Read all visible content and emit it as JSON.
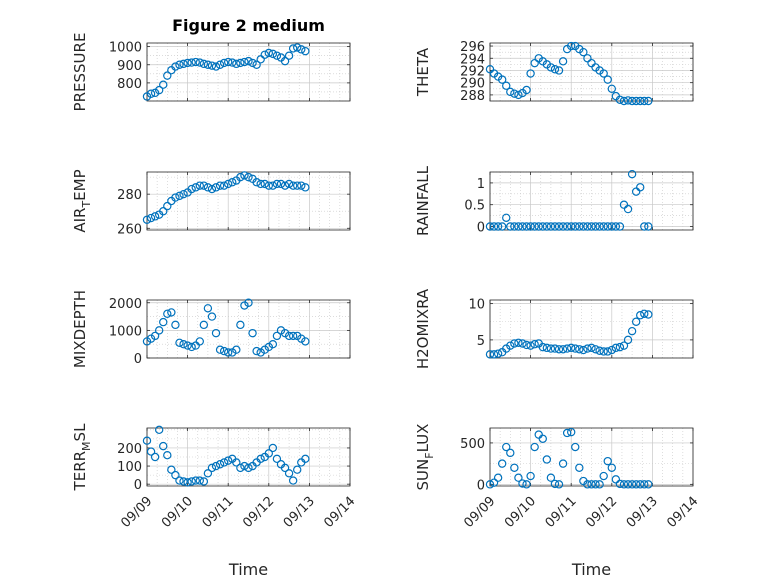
{
  "figure_title": "Figure 2 medium",
  "colors": {
    "marker": "#0072BD",
    "axis": "#262626",
    "grid": "#c8c8c8"
  },
  "chart_data": [
    {
      "id": "pressure",
      "type": "scatter",
      "title": "Figure 2 medium",
      "ylabel": "PRESSURE",
      "ylabel_sub": "",
      "ylabel_suffix": "",
      "xlabel": "",
      "ylim": [
        700,
        1020
      ],
      "yticks": [
        800,
        900,
        1000
      ],
      "xlim": [
        0,
        5
      ],
      "xticks": [
        0,
        1,
        2,
        3,
        4,
        5
      ],
      "xticklabels": [
        "09/09",
        "09/10",
        "09/11",
        "09/12",
        "09/13",
        "09/14"
      ],
      "show_xticklabels": false,
      "x": [
        0.0,
        0.1,
        0.2,
        0.3,
        0.4,
        0.5,
        0.6,
        0.7,
        0.8,
        0.9,
        1.0,
        1.1,
        1.2,
        1.3,
        1.4,
        1.5,
        1.6,
        1.7,
        1.8,
        1.9,
        2.0,
        2.1,
        2.2,
        2.3,
        2.4,
        2.5,
        2.6,
        2.7,
        2.8,
        2.9,
        3.0,
        3.1,
        3.2,
        3.3,
        3.4,
        3.5,
        3.6,
        3.7,
        3.8,
        3.9
      ],
      "y": [
        725,
        740,
        745,
        760,
        790,
        840,
        870,
        890,
        900,
        905,
        910,
        912,
        915,
        912,
        905,
        900,
        895,
        890,
        900,
        910,
        915,
        912,
        905,
        910,
        915,
        920,
        910,
        900,
        930,
        955,
        965,
        960,
        950,
        940,
        920,
        950,
        990,
        995,
        985,
        975
      ]
    },
    {
      "id": "theta",
      "type": "scatter",
      "title": "",
      "ylabel": "THETA",
      "ylabel_sub": "",
      "ylabel_suffix": "",
      "xlabel": "",
      "ylim": [
        287,
        296.5
      ],
      "yticks": [
        288,
        290,
        292,
        294,
        296
      ],
      "xlim": [
        0,
        5
      ],
      "xticks": [
        0,
        1,
        2,
        3,
        4,
        5
      ],
      "xticklabels": [
        "09/09",
        "09/10",
        "09/11",
        "09/12",
        "09/13",
        "09/14"
      ],
      "show_xticklabels": false,
      "x": [
        0.0,
        0.1,
        0.2,
        0.3,
        0.4,
        0.5,
        0.6,
        0.7,
        0.8,
        0.9,
        1.0,
        1.1,
        1.2,
        1.3,
        1.4,
        1.5,
        1.6,
        1.7,
        1.8,
        1.9,
        2.0,
        2.1,
        2.2,
        2.3,
        2.4,
        2.5,
        2.6,
        2.7,
        2.8,
        2.9,
        3.0,
        3.1,
        3.2,
        3.3,
        3.4,
        3.5,
        3.6,
        3.7,
        3.8,
        3.9
      ],
      "y": [
        292.2,
        291.5,
        291.0,
        290.5,
        289.5,
        288.5,
        288.2,
        288.0,
        288.3,
        288.8,
        291.5,
        293.2,
        294.0,
        293.5,
        293.0,
        292.5,
        292.2,
        292.0,
        293.5,
        295.5,
        296.0,
        296.0,
        295.5,
        295.0,
        294.0,
        293.2,
        292.5,
        292.0,
        291.5,
        290.5,
        289.0,
        287.8,
        287.2,
        287.0,
        287.1,
        287.0,
        287.0,
        287.0,
        287.0,
        287.0
      ]
    },
    {
      "id": "air_temp",
      "type": "scatter",
      "title": "",
      "ylabel": "AIR",
      "ylabel_sub": "T",
      "ylabel_suffix": "EMP",
      "xlabel": "",
      "ylim": [
        259,
        293
      ],
      "yticks": [
        260,
        280
      ],
      "xlim": [
        0,
        5
      ],
      "xticks": [
        0,
        1,
        2,
        3,
        4,
        5
      ],
      "xticklabels": [
        "09/09",
        "09/10",
        "09/11",
        "09/12",
        "09/13",
        "09/14"
      ],
      "show_xticklabels": false,
      "x": [
        0.0,
        0.1,
        0.2,
        0.3,
        0.4,
        0.5,
        0.6,
        0.7,
        0.8,
        0.9,
        1.0,
        1.1,
        1.2,
        1.3,
        1.4,
        1.5,
        1.6,
        1.7,
        1.8,
        1.9,
        2.0,
        2.1,
        2.2,
        2.3,
        2.4,
        2.5,
        2.6,
        2.7,
        2.8,
        2.9,
        3.0,
        3.1,
        3.2,
        3.3,
        3.4,
        3.5,
        3.6,
        3.7,
        3.8,
        3.9
      ],
      "y": [
        265,
        266,
        267,
        268,
        270,
        273,
        276,
        278,
        279,
        280,
        281,
        283,
        284,
        285,
        285,
        284,
        283,
        284,
        285,
        285,
        286,
        287,
        288,
        290,
        291,
        290,
        289,
        287,
        286,
        286,
        285,
        285,
        286,
        286,
        285,
        286,
        285,
        285,
        285,
        284
      ]
    },
    {
      "id": "rainfall",
      "type": "scatter",
      "title": "",
      "ylabel": "RAINFALL",
      "ylabel_sub": "",
      "ylabel_suffix": "",
      "xlabel": "",
      "ylim": [
        -0.08,
        1.25
      ],
      "yticks": [
        0,
        0.5,
        1
      ],
      "xlim": [
        0,
        5
      ],
      "xticks": [
        0,
        1,
        2,
        3,
        4,
        5
      ],
      "xticklabels": [
        "09/09",
        "09/10",
        "09/11",
        "09/12",
        "09/13",
        "09/14"
      ],
      "show_xticklabels": false,
      "x": [
        0.0,
        0.1,
        0.2,
        0.3,
        0.4,
        0.5,
        0.6,
        0.7,
        0.8,
        0.9,
        1.0,
        1.1,
        1.2,
        1.3,
        1.4,
        1.5,
        1.6,
        1.7,
        1.8,
        1.9,
        2.0,
        2.1,
        2.2,
        2.3,
        2.4,
        2.5,
        2.6,
        2.7,
        2.8,
        2.9,
        3.0,
        3.1,
        3.2,
        3.3,
        3.4,
        3.5,
        3.6,
        3.7,
        3.8,
        3.9
      ],
      "y": [
        0,
        0,
        0,
        0,
        0.2,
        0,
        0,
        0,
        0,
        0,
        0,
        0,
        0,
        0,
        0,
        0,
        0,
        0,
        0,
        0,
        0,
        0,
        0,
        0,
        0,
        0,
        0,
        0,
        0,
        0,
        0,
        0,
        0,
        0.5,
        0.4,
        1.2,
        0.8,
        0.9,
        0,
        0
      ]
    },
    {
      "id": "mixdepth",
      "type": "scatter",
      "title": "",
      "ylabel": "MIXDEPTH",
      "ylabel_sub": "",
      "ylabel_suffix": "",
      "xlabel": "",
      "ylim": [
        0,
        2100
      ],
      "yticks": [
        0,
        1000,
        2000
      ],
      "xlim": [
        0,
        5
      ],
      "xticks": [
        0,
        1,
        2,
        3,
        4,
        5
      ],
      "xticklabels": [
        "09/09",
        "09/10",
        "09/11",
        "09/12",
        "09/13",
        "09/14"
      ],
      "show_xticklabels": false,
      "x": [
        0.0,
        0.1,
        0.2,
        0.3,
        0.4,
        0.5,
        0.6,
        0.7,
        0.8,
        0.9,
        1.0,
        1.1,
        1.2,
        1.3,
        1.4,
        1.5,
        1.6,
        1.7,
        1.8,
        1.9,
        2.0,
        2.1,
        2.2,
        2.3,
        2.4,
        2.5,
        2.6,
        2.7,
        2.8,
        2.9,
        3.0,
        3.1,
        3.2,
        3.3,
        3.4,
        3.5,
        3.6,
        3.7,
        3.8,
        3.9
      ],
      "y": [
        600,
        700,
        800,
        1000,
        1300,
        1600,
        1650,
        1200,
        550,
        500,
        450,
        400,
        450,
        600,
        1200,
        1800,
        1500,
        900,
        300,
        250,
        200,
        200,
        300,
        1200,
        1900,
        2000,
        900,
        250,
        200,
        300,
        400,
        500,
        800,
        1000,
        900,
        800,
        800,
        800,
        700,
        600
      ]
    },
    {
      "id": "h2omixra",
      "type": "scatter",
      "title": "",
      "ylabel": "H2OMIXRA",
      "ylabel_sub": "",
      "ylabel_suffix": "",
      "xlabel": "",
      "ylim": [
        2.5,
        10.5
      ],
      "yticks": [
        5,
        10
      ],
      "xlim": [
        0,
        5
      ],
      "xticks": [
        0,
        1,
        2,
        3,
        4,
        5
      ],
      "xticklabels": [
        "09/09",
        "09/10",
        "09/11",
        "09/12",
        "09/13",
        "09/14"
      ],
      "show_xticklabels": false,
      "x": [
        0.0,
        0.1,
        0.2,
        0.3,
        0.4,
        0.5,
        0.6,
        0.7,
        0.8,
        0.9,
        1.0,
        1.1,
        1.2,
        1.3,
        1.4,
        1.5,
        1.6,
        1.7,
        1.8,
        1.9,
        2.0,
        2.1,
        2.2,
        2.3,
        2.4,
        2.5,
        2.6,
        2.7,
        2.8,
        2.9,
        3.0,
        3.1,
        3.2,
        3.3,
        3.4,
        3.5,
        3.6,
        3.7,
        3.8,
        3.9
      ],
      "y": [
        3.0,
        3.0,
        3.1,
        3.3,
        3.8,
        4.2,
        4.5,
        4.6,
        4.5,
        4.3,
        4.2,
        4.4,
        4.5,
        4.0,
        3.9,
        3.8,
        3.8,
        3.7,
        3.7,
        3.8,
        3.9,
        3.8,
        3.7,
        3.6,
        3.8,
        3.9,
        3.7,
        3.5,
        3.4,
        3.4,
        3.6,
        3.9,
        4.0,
        4.2,
        5.0,
        6.2,
        7.5,
        8.4,
        8.6,
        8.5
      ]
    },
    {
      "id": "terr_msl",
      "type": "scatter",
      "title": "",
      "ylabel": "TERR",
      "ylabel_sub": "M",
      "ylabel_suffix": "SL",
      "xlabel": "Time",
      "ylim": [
        -10,
        310
      ],
      "yticks": [
        0,
        100,
        200
      ],
      "xlim": [
        0,
        5
      ],
      "xticks": [
        0,
        1,
        2,
        3,
        4,
        5
      ],
      "xticklabels": [
        "09/09",
        "09/10",
        "09/11",
        "09/12",
        "09/13",
        "09/14"
      ],
      "show_xticklabels": true,
      "x": [
        0.0,
        0.1,
        0.2,
        0.3,
        0.4,
        0.5,
        0.6,
        0.7,
        0.8,
        0.9,
        1.0,
        1.1,
        1.2,
        1.3,
        1.4,
        1.5,
        1.6,
        1.7,
        1.8,
        1.9,
        2.0,
        2.1,
        2.2,
        2.3,
        2.4,
        2.5,
        2.6,
        2.7,
        2.8,
        2.9,
        3.0,
        3.1,
        3.2,
        3.3,
        3.4,
        3.5,
        3.6,
        3.7,
        3.8,
        3.9
      ],
      "y": [
        240,
        180,
        150,
        300,
        210,
        160,
        80,
        50,
        20,
        15,
        10,
        15,
        20,
        20,
        15,
        60,
        90,
        100,
        110,
        120,
        130,
        140,
        120,
        90,
        100,
        90,
        100,
        120,
        140,
        150,
        170,
        200,
        140,
        110,
        90,
        60,
        20,
        80,
        120,
        140
      ]
    },
    {
      "id": "sun_flux",
      "type": "scatter",
      "title": "",
      "ylabel": "SUN",
      "ylabel_sub": "F",
      "ylabel_suffix": "LUX",
      "xlabel": "Time",
      "ylim": [
        -20,
        680
      ],
      "yticks": [
        0,
        500
      ],
      "xlim": [
        0,
        5
      ],
      "xticks": [
        0,
        1,
        2,
        3,
        4,
        5
      ],
      "xticklabels": [
        "09/09",
        "09/10",
        "09/11",
        "09/12",
        "09/13",
        "09/14"
      ],
      "show_xticklabels": true,
      "x": [
        0.0,
        0.1,
        0.2,
        0.3,
        0.4,
        0.5,
        0.6,
        0.7,
        0.8,
        0.9,
        1.0,
        1.1,
        1.2,
        1.3,
        1.4,
        1.5,
        1.6,
        1.7,
        1.8,
        1.9,
        2.0,
        2.1,
        2.2,
        2.3,
        2.4,
        2.5,
        2.6,
        2.7,
        2.8,
        2.9,
        3.0,
        3.1,
        3.2,
        3.3,
        3.4,
        3.5,
        3.6,
        3.7,
        3.8,
        3.9
      ],
      "y": [
        0,
        20,
        80,
        250,
        450,
        380,
        200,
        80,
        10,
        0,
        100,
        450,
        600,
        550,
        300,
        80,
        5,
        0,
        250,
        620,
        630,
        450,
        200,
        40,
        0,
        0,
        0,
        0,
        100,
        280,
        200,
        60,
        5,
        0,
        0,
        0,
        0,
        0,
        0,
        0
      ]
    }
  ]
}
